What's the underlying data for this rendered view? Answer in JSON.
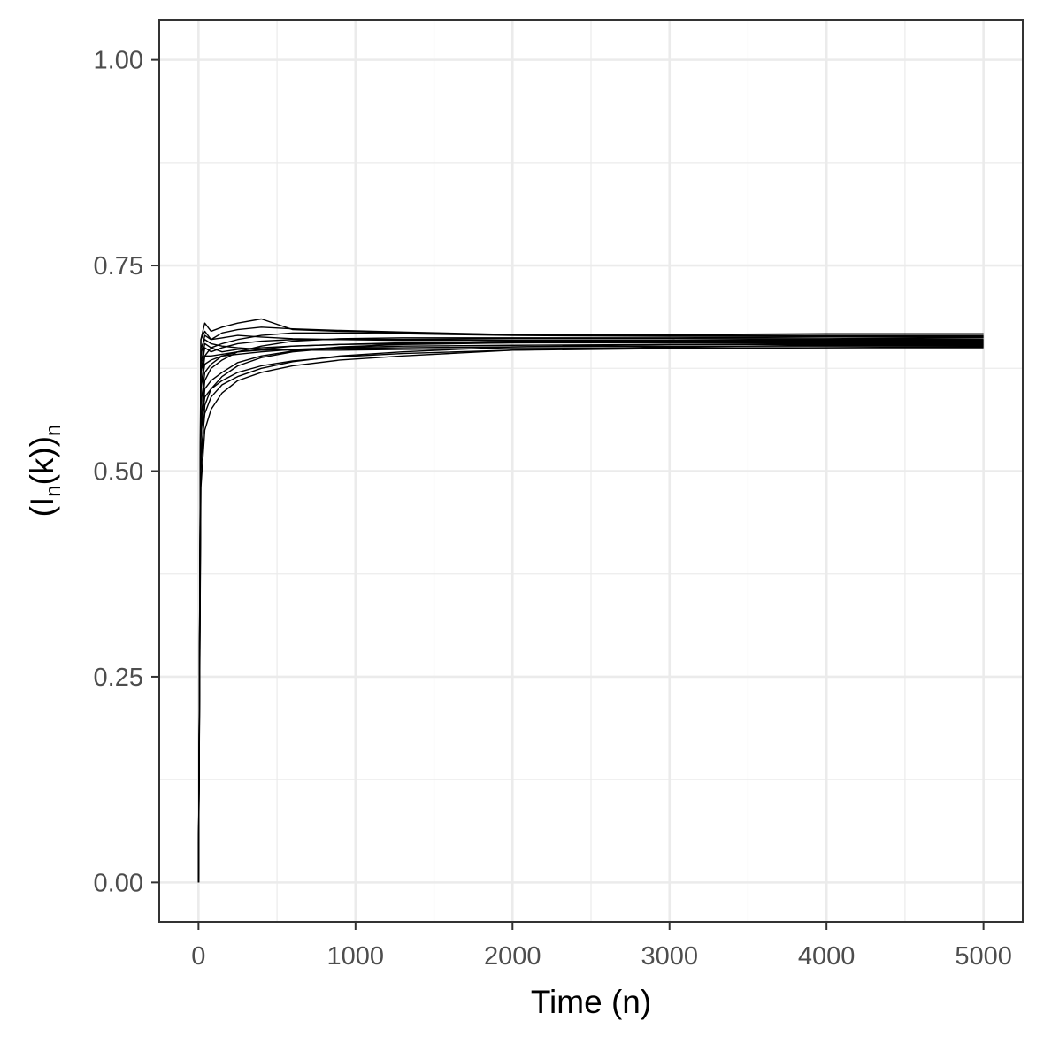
{
  "chart_data": {
    "type": "line",
    "xlabel": "Time (n)",
    "ylabel": {
      "open": "(I",
      "sub1": "n",
      "mid": "(k))",
      "sub2": "n"
    },
    "xlim": [
      -250,
      5250
    ],
    "ylim": [
      -0.048,
      1.048
    ],
    "x_ticks": [
      0,
      1000,
      2000,
      3000,
      4000,
      5000
    ],
    "x_tick_labels": [
      "0",
      "1000",
      "2000",
      "3000",
      "4000",
      "5000"
    ],
    "y_ticks": [
      0,
      0.25,
      0.5,
      0.75,
      1.0
    ],
    "y_tick_labels": [
      "0.00",
      "0.25",
      "0.50",
      "0.75",
      "1.00"
    ],
    "grid": true,
    "legend": "none",
    "line_color": "#000000",
    "series": [
      {
        "x": [
          0,
          15,
          40,
          80,
          150,
          250,
          400,
          600,
          900,
          1300,
          2000,
          3000,
          4000,
          5000
        ],
        "y": [
          0,
          0.66,
          0.68,
          0.67,
          0.675,
          0.68,
          0.685,
          0.672,
          0.67,
          0.668,
          0.666,
          0.666,
          0.667,
          0.667
        ]
      },
      {
        "x": [
          0,
          15,
          40,
          80,
          150,
          250,
          400,
          600,
          900,
          1300,
          2000,
          3000,
          4000,
          5000
        ],
        "y": [
          0,
          0.64,
          0.665,
          0.66,
          0.668,
          0.672,
          0.675,
          0.673,
          0.671,
          0.669,
          0.666,
          0.665,
          0.665,
          0.665
        ]
      },
      {
        "x": [
          0,
          15,
          40,
          80,
          150,
          250,
          400,
          600,
          900,
          1300,
          2000,
          3000,
          4000,
          5000
        ],
        "y": [
          0,
          0.6,
          0.64,
          0.65,
          0.655,
          0.66,
          0.665,
          0.668,
          0.668,
          0.667,
          0.665,
          0.664,
          0.664,
          0.664
        ]
      },
      {
        "x": [
          0,
          15,
          40,
          80,
          150,
          250,
          400,
          600,
          900,
          1300,
          2000,
          3000,
          4000,
          5000
        ],
        "y": [
          0,
          0.56,
          0.61,
          0.625,
          0.635,
          0.645,
          0.652,
          0.658,
          0.661,
          0.662,
          0.662,
          0.662,
          0.663,
          0.663
        ]
      },
      {
        "x": [
          0,
          15,
          40,
          80,
          150,
          250,
          400,
          600,
          900,
          1300,
          2000,
          3000,
          4000,
          5000
        ],
        "y": [
          0,
          0.62,
          0.65,
          0.645,
          0.65,
          0.655,
          0.658,
          0.66,
          0.66,
          0.66,
          0.661,
          0.661,
          0.661,
          0.662
        ]
      },
      {
        "x": [
          0,
          15,
          40,
          80,
          150,
          250,
          400,
          600,
          900,
          1300,
          2000,
          3000,
          4000,
          5000
        ],
        "y": [
          0,
          0.5,
          0.58,
          0.6,
          0.615,
          0.628,
          0.638,
          0.645,
          0.65,
          0.655,
          0.658,
          0.659,
          0.66,
          0.66
        ]
      },
      {
        "x": [
          0,
          15,
          40,
          80,
          150,
          250,
          400,
          600,
          900,
          1300,
          2000,
          3000,
          4000,
          5000
        ],
        "y": [
          0,
          0.66,
          0.67,
          0.66,
          0.662,
          0.665,
          0.663,
          0.661,
          0.66,
          0.659,
          0.659,
          0.659,
          0.659,
          0.659
        ]
      },
      {
        "x": [
          0,
          15,
          40,
          80,
          150,
          250,
          400,
          600,
          900,
          1300,
          2000,
          3000,
          4000,
          5000
        ],
        "y": [
          0,
          0.58,
          0.62,
          0.63,
          0.64,
          0.645,
          0.648,
          0.652,
          0.654,
          0.656,
          0.657,
          0.658,
          0.658,
          0.658
        ]
      },
      {
        "x": [
          0,
          15,
          40,
          80,
          150,
          250,
          400,
          600,
          900,
          1300,
          2000,
          3000,
          4000,
          5000
        ],
        "y": [
          0,
          0.54,
          0.6,
          0.61,
          0.62,
          0.632,
          0.64,
          0.646,
          0.651,
          0.654,
          0.656,
          0.657,
          0.657,
          0.657
        ]
      },
      {
        "x": [
          0,
          15,
          40,
          80,
          150,
          250,
          400,
          600,
          900,
          1300,
          2000,
          3000,
          4000,
          5000
        ],
        "y": [
          0,
          0.63,
          0.655,
          0.65,
          0.645,
          0.648,
          0.65,
          0.652,
          0.654,
          0.655,
          0.656,
          0.656,
          0.656,
          0.656
        ]
      },
      {
        "x": [
          0,
          15,
          40,
          80,
          150,
          250,
          400,
          600,
          900,
          1300,
          2000,
          3000,
          4000,
          5000
        ],
        "y": [
          0,
          0.52,
          0.57,
          0.59,
          0.605,
          0.615,
          0.625,
          0.633,
          0.64,
          0.645,
          0.651,
          0.654,
          0.655,
          0.655
        ]
      },
      {
        "x": [
          0,
          15,
          40,
          80,
          150,
          250,
          400,
          600,
          900,
          1300,
          2000,
          3000,
          4000,
          5000
        ],
        "y": [
          0,
          0.6,
          0.63,
          0.635,
          0.64,
          0.642,
          0.645,
          0.648,
          0.65,
          0.652,
          0.653,
          0.654,
          0.654,
          0.654
        ]
      },
      {
        "x": [
          0,
          15,
          40,
          80,
          150,
          250,
          400,
          600,
          900,
          1300,
          2000,
          3000,
          4000,
          5000
        ],
        "y": [
          0,
          0.48,
          0.55,
          0.575,
          0.595,
          0.61,
          0.62,
          0.628,
          0.635,
          0.64,
          0.647,
          0.651,
          0.653,
          0.653
        ]
      },
      {
        "x": [
          0,
          15,
          40,
          80,
          150,
          250,
          400,
          600,
          900,
          1300,
          2000,
          3000,
          4000,
          5000
        ],
        "y": [
          0,
          0.62,
          0.64,
          0.64,
          0.642,
          0.645,
          0.647,
          0.648,
          0.649,
          0.65,
          0.651,
          0.652,
          0.652,
          0.652
        ]
      },
      {
        "x": [
          0,
          15,
          40,
          80,
          150,
          250,
          400,
          600,
          900,
          1300,
          2000,
          3000,
          4000,
          5000
        ],
        "y": [
          0,
          0.55,
          0.59,
          0.6,
          0.61,
          0.62,
          0.628,
          0.634,
          0.639,
          0.643,
          0.647,
          0.649,
          0.65,
          0.651
        ]
      },
      {
        "x": [
          0,
          15,
          40,
          80,
          150,
          250,
          400,
          600,
          900,
          1300,
          2000,
          3000,
          4000,
          5000
        ],
        "y": [
          0,
          0.65,
          0.66,
          0.655,
          0.652,
          0.65,
          0.648,
          0.647,
          0.647,
          0.648,
          0.649,
          0.65,
          0.65,
          0.65
        ]
      }
    ]
  }
}
